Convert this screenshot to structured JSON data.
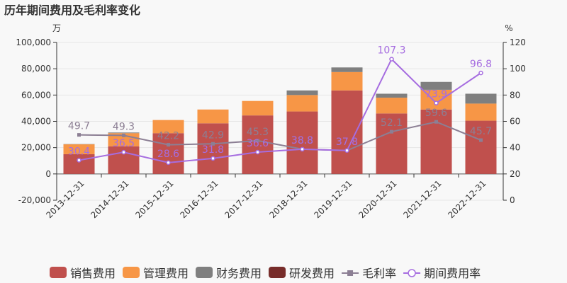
{
  "chart_data": {
    "type": "bar",
    "title": "历年期间费用及毛利率变化",
    "left_unit": "万",
    "right_unit": "%",
    "categories": [
      "2013-12-31",
      "2014-12-31",
      "2015-12-31",
      "2016-12-31",
      "2017-12-31",
      "2018-12-31",
      "2019-12-31",
      "2020-12-31",
      "2021-12-31",
      "2022-12-31"
    ],
    "left_axis": {
      "min": -20000,
      "max": 100000,
      "step": 20000,
      "ticks": [
        "-20,000",
        "0",
        "20,000",
        "40,000",
        "60,000",
        "80,000",
        "100,000"
      ]
    },
    "right_axis": {
      "min": 0,
      "max": 120,
      "step": 20,
      "ticks": [
        "0",
        "20",
        "40",
        "60",
        "80",
        "100",
        "120"
      ]
    },
    "stacked_series": [
      {
        "name": "销售费用",
        "color": "#c0504d",
        "values": [
          15000,
          21000,
          31000,
          38500,
          44500,
          47500,
          63500,
          46000,
          49000,
          40500
        ]
      },
      {
        "name": "管理费用",
        "color": "#f79646",
        "values": [
          7500,
          10000,
          10000,
          10500,
          11000,
          12500,
          14000,
          12000,
          15000,
          13000
        ]
      },
      {
        "name": "财务费用",
        "color": "#7f7f7f",
        "values": [
          200,
          500,
          0,
          0,
          0,
          3500,
          3500,
          3000,
          6000,
          7500
        ]
      },
      {
        "name": "研发费用",
        "color": "#772c2a",
        "values": [
          0,
          0,
          0,
          0,
          0,
          0,
          0,
          0,
          0,
          0
        ]
      }
    ],
    "line_series": [
      {
        "name": "毛利率",
        "color": "#8c7f94",
        "marker": "square",
        "values": [
          49.7,
          49.3,
          42.2,
          42.9,
          45.3,
          38.8,
          37.8,
          52.1,
          59.6,
          45.7
        ],
        "labels": [
          "49.7",
          "49.3",
          "42.2",
          "42.9",
          "45.3",
          "38.8",
          "37.8",
          "52.1",
          "59.6",
          "45.7"
        ]
      },
      {
        "name": "期间费用率",
        "color": "#a66de0",
        "marker": "circle",
        "values": [
          30.4,
          36.5,
          28.6,
          31.8,
          36.6,
          38.8,
          37.8,
          107.3,
          73.9,
          96.8
        ],
        "labels": [
          "30.4",
          "36.5",
          "28.6",
          "31.8",
          "36.6",
          "38.8",
          "37.8",
          "107.3",
          "73.9",
          "96.8"
        ]
      }
    ],
    "legend_position": "bottom"
  }
}
